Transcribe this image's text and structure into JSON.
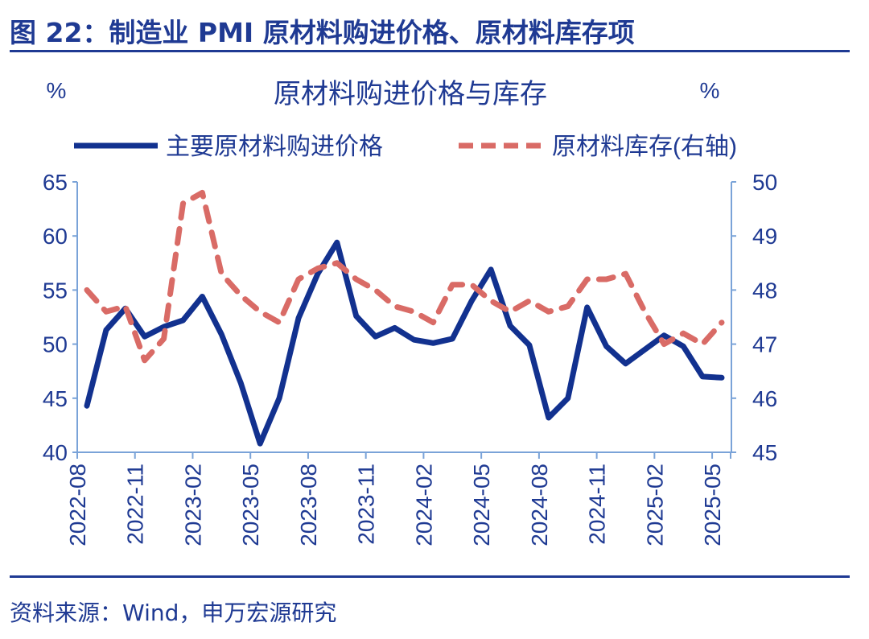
{
  "figure_title": "图 22：制造业 PMI 原材料购进价格、原材料库存项",
  "source": "资料来源：Wind，申万宏源研究",
  "chart_data": {
    "type": "line",
    "title": "原材料购进价格与库存",
    "left_unit": "%",
    "right_unit": "%",
    "x": [
      "2022-08",
      "2022-09",
      "2022-10",
      "2022-11",
      "2022-12",
      "2023-01",
      "2023-02",
      "2023-03",
      "2023-04",
      "2023-05",
      "2023-06",
      "2023-07",
      "2023-08",
      "2023-09",
      "2023-10",
      "2023-11",
      "2023-12",
      "2024-01",
      "2024-02",
      "2024-03",
      "2024-04",
      "2024-05",
      "2024-06",
      "2024-07",
      "2024-08",
      "2024-09",
      "2024-10",
      "2024-11",
      "2024-12",
      "2025-01",
      "2025-02",
      "2025-03",
      "2025-04",
      "2025-05"
    ],
    "x_tick_labels": [
      "2022-08",
      "2022-11",
      "2023-02",
      "2023-05",
      "2023-08",
      "2023-11",
      "2024-02",
      "2024-05",
      "2024-08",
      "2024-11",
      "2025-02",
      "2025-05"
    ],
    "ylim_left": [
      40,
      65
    ],
    "yticks_left": [
      "40",
      "45",
      "50",
      "55",
      "60",
      "65"
    ],
    "ylim_right": [
      45,
      50
    ],
    "yticks_right": [
      "45",
      "46",
      "47",
      "48",
      "49",
      "50"
    ],
    "legend_position": "top",
    "series": [
      {
        "name": "主要原材料购进价格",
        "axis": "left",
        "color": "#12318f",
        "style": "solid",
        "values": [
          44.3,
          51.3,
          53.3,
          50.7,
          51.6,
          52.2,
          54.4,
          50.9,
          46.4,
          40.8,
          45.0,
          52.4,
          56.5,
          59.4,
          52.6,
          50.7,
          51.5,
          50.4,
          50.1,
          50.5,
          54.0,
          56.9,
          51.7,
          49.9,
          43.2,
          45.0,
          53.4,
          49.8,
          48.2,
          49.5,
          50.8,
          49.8,
          47.0,
          46.9
        ]
      },
      {
        "name": "原材料库存(右轴)",
        "axis": "right",
        "color": "#d96b66",
        "style": "dashed",
        "values": [
          48.0,
          47.6,
          47.7,
          46.7,
          47.1,
          49.6,
          49.8,
          48.3,
          47.9,
          47.6,
          47.4,
          48.2,
          48.4,
          48.5,
          48.2,
          48.0,
          47.7,
          47.6,
          47.4,
          48.1,
          48.1,
          47.8,
          47.6,
          47.8,
          47.6,
          47.7,
          48.2,
          48.2,
          48.3,
          47.6,
          47.0,
          47.2,
          47.0,
          47.4
        ]
      }
    ]
  }
}
